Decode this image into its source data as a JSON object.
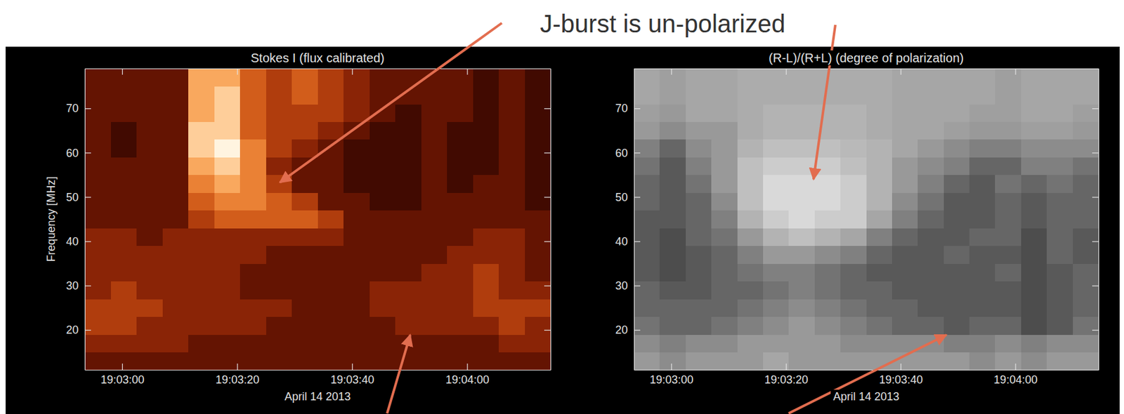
{
  "annotation": "J-burst is un-polarized",
  "chart_data": [
    {
      "type": "heatmap",
      "title": "Stokes I (flux calibrated)",
      "x_label": "April 14 2013",
      "y_label": "Frequency [MHz]",
      "color": "hot",
      "xlim": [
        173.5,
        254.5
      ],
      "ylim": [
        11,
        79
      ],
      "zlim": [
        0,
        10
      ],
      "xticks": [
        {
          "value": 180,
          "label": "19:03:00"
        },
        {
          "value": 200,
          "label": "19:03:20"
        },
        {
          "value": 220,
          "label": "19:03:40"
        },
        {
          "value": 240,
          "label": "19:04:00"
        }
      ],
      "yticks": [
        20,
        30,
        40,
        50,
        60,
        70
      ],
      "x_edges": [
        173.5,
        178,
        182.5,
        187,
        191.5,
        196,
        200.5,
        205,
        209.5,
        214,
        218.5,
        223,
        227.5,
        232,
        236.5,
        241,
        245.5,
        250,
        254.5
      ],
      "y_edges": [
        11,
        15,
        19,
        23,
        27,
        31,
        35,
        39,
        43,
        47,
        51,
        55,
        59,
        63,
        67,
        71,
        75,
        79
      ],
      "z": [
        [
          3,
          3,
          3,
          3,
          3,
          3,
          3,
          3,
          3,
          3,
          3,
          3,
          3,
          3,
          3,
          3,
          3,
          3
        ],
        [
          4,
          4,
          4,
          4,
          3,
          3,
          3,
          3,
          3,
          3,
          3,
          3,
          3,
          3,
          3,
          3,
          4,
          4
        ],
        [
          5,
          5,
          4,
          4,
          4,
          4,
          4,
          3,
          3,
          3,
          3,
          3,
          4,
          4,
          4,
          4,
          5,
          4
        ],
        [
          5,
          5,
          5,
          4,
          4,
          4,
          4,
          4,
          3,
          3,
          3,
          4,
          4,
          4,
          4,
          5,
          5,
          5
        ],
        [
          4,
          5,
          4,
          4,
          4,
          4,
          3,
          3,
          3,
          3,
          3,
          4,
          4,
          4,
          4,
          5,
          4,
          4
        ],
        [
          4,
          4,
          4,
          4,
          4,
          4,
          3,
          3,
          3,
          3,
          3,
          3,
          3,
          4,
          4,
          5,
          4,
          3
        ],
        [
          4,
          4,
          4,
          4,
          4,
          4,
          4,
          3,
          3,
          3,
          3,
          3,
          3,
          3,
          4,
          4,
          4,
          3
        ],
        [
          4,
          4,
          3,
          4,
          4,
          4,
          4,
          4,
          4,
          4,
          3,
          3,
          3,
          3,
          3,
          4,
          4,
          3
        ],
        [
          3,
          3,
          3,
          3,
          5,
          6,
          6,
          6,
          6,
          5,
          3,
          3,
          3,
          3,
          3,
          3,
          3,
          3
        ],
        [
          3,
          3,
          3,
          3,
          6,
          7,
          7,
          6,
          5,
          3,
          3,
          2,
          2,
          3,
          3,
          3,
          3,
          2
        ],
        [
          3,
          3,
          3,
          3,
          7,
          8,
          7,
          5,
          3,
          3,
          2,
          2,
          2,
          3,
          2,
          3,
          3,
          2
        ],
        [
          3,
          3,
          3,
          3,
          8,
          9,
          7,
          4,
          3,
          3,
          2,
          2,
          2,
          3,
          2,
          2,
          3,
          2
        ],
        [
          3,
          2,
          3,
          3,
          9,
          10,
          7,
          5,
          4,
          3,
          2,
          2,
          2,
          3,
          2,
          2,
          3,
          2
        ],
        [
          3,
          2,
          3,
          3,
          9,
          9,
          6,
          5,
          5,
          4,
          3,
          2,
          2,
          3,
          2,
          2,
          3,
          2
        ],
        [
          3,
          3,
          3,
          3,
          8,
          9,
          6,
          5,
          5,
          5,
          4,
          3,
          2,
          3,
          3,
          2,
          3,
          2
        ],
        [
          3,
          3,
          3,
          3,
          8,
          9,
          6,
          5,
          6,
          5,
          4,
          3,
          3,
          3,
          3,
          2,
          3,
          2
        ],
        [
          3,
          3,
          3,
          3,
          8,
          8,
          6,
          5,
          6,
          5,
          4,
          3,
          3,
          3,
          3,
          2,
          3,
          2
        ]
      ]
    },
    {
      "type": "heatmap",
      "title": "(R-L)/(R+L) (degree of polarization)",
      "x_label": "April 14 2013",
      "color": "gray",
      "xlim": [
        173.5,
        254.5
      ],
      "ylim": [
        11,
        79
      ],
      "zlim": [
        -1,
        1
      ],
      "xticks": [
        {
          "value": 180,
          "label": "19:03:00"
        },
        {
          "value": 200,
          "label": "19:03:20"
        },
        {
          "value": 220,
          "label": "19:03:40"
        },
        {
          "value": 240,
          "label": "19:04:00"
        }
      ],
      "yticks": [
        20,
        30,
        40,
        50,
        60,
        70
      ],
      "x_edges": [
        173.5,
        178,
        182.5,
        187,
        191.5,
        196,
        200.5,
        205,
        209.5,
        214,
        218.5,
        223,
        227.5,
        232,
        236.5,
        241,
        245.5,
        250,
        254.5
      ],
      "y_edges": [
        11,
        15,
        19,
        23,
        27,
        31,
        35,
        39,
        43,
        47,
        51,
        55,
        59,
        63,
        67,
        71,
        75,
        79
      ],
      "z": [
        [
          0.2,
          0.1,
          0.2,
          0.2,
          0.2,
          0.3,
          0.2,
          0.2,
          0.2,
          0.2,
          0.2,
          0.2,
          0.2,
          0.1,
          0.2,
          0.1,
          0.2,
          0.2
        ],
        [
          0.1,
          0.0,
          0.1,
          0.1,
          0.2,
          0.2,
          0.2,
          0.2,
          0.1,
          0.1,
          0.1,
          0.1,
          0.0,
          0.0,
          0.1,
          0.0,
          0.1,
          0.1
        ],
        [
          -0.1,
          -0.2,
          -0.2,
          -0.1,
          0.0,
          0.1,
          0.2,
          0.1,
          0.0,
          -0.1,
          -0.2,
          -0.2,
          -0.3,
          -0.2,
          -0.2,
          -0.4,
          -0.3,
          -0.1
        ],
        [
          -0.2,
          -0.2,
          -0.2,
          -0.2,
          -0.1,
          0.0,
          0.1,
          0.0,
          -0.1,
          -0.2,
          -0.2,
          -0.3,
          -0.3,
          -0.3,
          -0.3,
          -0.4,
          -0.3,
          -0.2
        ],
        [
          -0.2,
          -0.3,
          -0.3,
          -0.2,
          -0.2,
          -0.1,
          0.0,
          -0.1,
          -0.2,
          -0.2,
          -0.3,
          -0.3,
          -0.3,
          -0.3,
          -0.3,
          -0.4,
          -0.3,
          -0.2
        ],
        [
          -0.3,
          -0.4,
          -0.3,
          -0.2,
          -0.1,
          0.0,
          0.0,
          -0.1,
          -0.2,
          -0.3,
          -0.3,
          -0.3,
          -0.3,
          -0.3,
          -0.2,
          -0.4,
          -0.3,
          -0.2
        ],
        [
          -0.3,
          -0.4,
          -0.3,
          -0.2,
          0.0,
          0.2,
          0.2,
          0.1,
          0.0,
          -0.2,
          -0.3,
          -0.3,
          -0.2,
          -0.3,
          -0.3,
          -0.4,
          -0.2,
          -0.3
        ],
        [
          -0.3,
          -0.4,
          -0.2,
          -0.1,
          0.2,
          0.4,
          0.5,
          0.4,
          0.3,
          0.0,
          -0.2,
          -0.3,
          -0.3,
          -0.2,
          -0.2,
          -0.4,
          -0.2,
          -0.3
        ],
        [
          -0.3,
          -0.3,
          -0.2,
          0.0,
          0.4,
          0.6,
          0.7,
          0.6,
          0.6,
          0.3,
          0.0,
          -0.2,
          -0.3,
          -0.3,
          -0.2,
          -0.3,
          -0.2,
          -0.2
        ],
        [
          -0.2,
          -0.3,
          -0.2,
          0.1,
          0.5,
          0.7,
          0.7,
          0.7,
          0.6,
          0.4,
          0.1,
          -0.1,
          -0.3,
          -0.3,
          -0.2,
          -0.3,
          -0.2,
          -0.2
        ],
        [
          -0.2,
          -0.3,
          -0.1,
          0.2,
          0.5,
          0.7,
          0.7,
          0.7,
          0.6,
          0.4,
          0.2,
          0.0,
          -0.2,
          -0.3,
          -0.1,
          -0.2,
          -0.1,
          -0.2
        ],
        [
          -0.1,
          -0.3,
          0.0,
          0.2,
          0.5,
          0.6,
          0.6,
          0.6,
          0.5,
          0.4,
          0.2,
          0.1,
          0.0,
          -0.2,
          -0.2,
          0.0,
          0.0,
          -0.1
        ],
        [
          0.0,
          -0.2,
          0.1,
          0.2,
          0.4,
          0.5,
          0.5,
          0.5,
          0.45,
          0.4,
          0.3,
          0.2,
          0.1,
          0.0,
          0.0,
          0.1,
          0.1,
          0.1
        ],
        [
          0.2,
          0.1,
          0.2,
          0.2,
          0.35,
          0.4,
          0.4,
          0.4,
          0.4,
          0.35,
          0.3,
          0.3,
          0.25,
          0.2,
          0.2,
          0.25,
          0.25,
          0.2
        ],
        [
          0.25,
          0.2,
          0.3,
          0.3,
          0.35,
          0.4,
          0.4,
          0.4,
          0.4,
          0.35,
          0.3,
          0.3,
          0.3,
          0.25,
          0.25,
          0.3,
          0.3,
          0.25
        ],
        [
          0.3,
          0.25,
          0.3,
          0.3,
          0.35,
          0.35,
          0.35,
          0.35,
          0.35,
          0.35,
          0.3,
          0.3,
          0.3,
          0.3,
          0.25,
          0.3,
          0.3,
          0.3
        ],
        [
          0.3,
          0.25,
          0.3,
          0.3,
          0.35,
          0.35,
          0.35,
          0.35,
          0.35,
          0.35,
          0.3,
          0.3,
          0.3,
          0.3,
          0.25,
          0.3,
          0.3,
          0.3
        ]
      ]
    }
  ]
}
